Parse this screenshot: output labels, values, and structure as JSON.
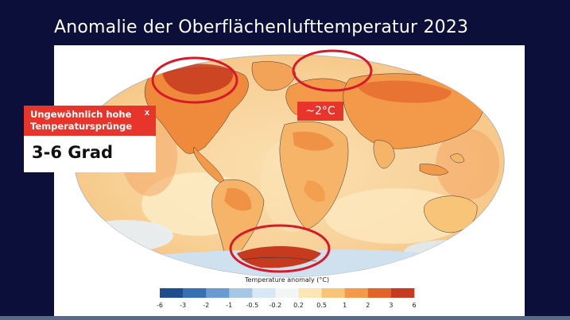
{
  "slide": {
    "title": "Anomalie der Oberflächenlufttemperatur  2023"
  },
  "annotation_box": {
    "header": "Ungewöhnlich hohe Temperatursprünge",
    "close_symbol": "x",
    "value": "3-6 Grad"
  },
  "highlight_badge": {
    "text": "~2°C"
  },
  "legend": {
    "title": "Temperature anomaly (°C)",
    "ticks": [
      "-6",
      "-3",
      "-2",
      "-1",
      "-0.5",
      "-0.2",
      "0.2",
      "0.5",
      "1",
      "2",
      "3",
      "6"
    ],
    "colors": [
      "#1f4e8f",
      "#3670b3",
      "#6a9bd0",
      "#a6c6e6",
      "#d7e7f3",
      "#f4f5f5",
      "#fbe6b4",
      "#f8c478",
      "#f39a4a",
      "#e2622a",
      "#c63a1f"
    ]
  },
  "map": {
    "projection": "Robinson",
    "highlight_color": "#d7192a",
    "highlighted_regions": [
      "North America (Canada)",
      "Northern Europe / Arctic",
      "Antarctica (Weddell Sea)"
    ]
  }
}
